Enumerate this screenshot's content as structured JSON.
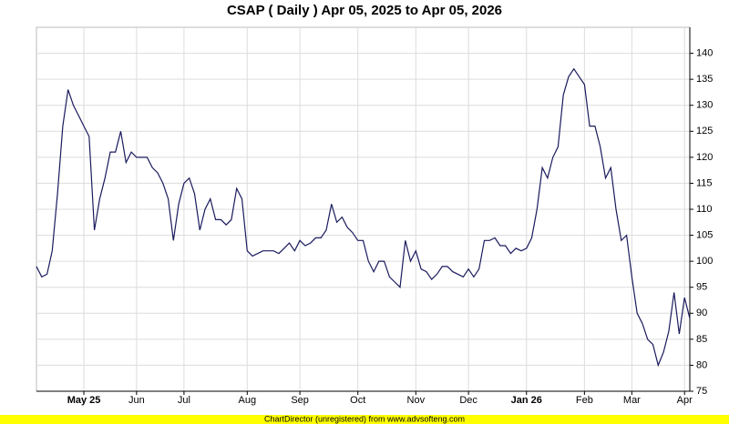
{
  "chart_data": {
    "type": "line",
    "title": "CSAP ( Daily ) Apr 05, 2025 to Apr 05, 2026",
    "categories": [
      null,
      null,
      null,
      null,
      null,
      null,
      null,
      null,
      null,
      "May 25",
      null,
      null,
      null,
      null,
      null,
      null,
      null,
      null,
      null,
      "Jun",
      null,
      null,
      null,
      null,
      null,
      null,
      null,
      null,
      "Jul",
      null,
      null,
      null,
      null,
      null,
      null,
      null,
      null,
      null,
      null,
      null,
      "Aug",
      null,
      null,
      null,
      null,
      null,
      null,
      null,
      null,
      null,
      "Sep",
      null,
      null,
      null,
      null,
      null,
      null,
      null,
      null,
      null,
      null,
      "Oct",
      null,
      null,
      null,
      null,
      null,
      null,
      null,
      null,
      null,
      null,
      "Nov",
      null,
      null,
      null,
      null,
      null,
      null,
      null,
      null,
      null,
      "Dec",
      null,
      null,
      null,
      null,
      null,
      null,
      null,
      null,
      null,
      null,
      "Jan 26",
      null,
      null,
      null,
      null,
      null,
      null,
      null,
      null,
      null,
      null,
      "Feb",
      null,
      null,
      null,
      null,
      null,
      null,
      null,
      null,
      "Mar",
      null,
      null,
      null,
      null,
      null,
      null,
      null,
      null,
      null,
      "Apr",
      null
    ],
    "values": [
      99,
      97,
      97.5,
      102,
      113,
      126,
      133,
      130,
      128,
      126,
      124,
      106,
      112,
      116,
      121,
      121,
      125,
      119,
      121,
      120,
      120,
      120,
      118,
      117,
      115,
      112,
      104,
      111,
      115,
      116,
      113,
      106,
      110,
      112,
      108,
      108,
      107,
      108,
      114,
      112,
      102,
      101,
      101.5,
      102,
      102,
      102,
      101.5,
      102.5,
      103.5,
      102,
      104,
      103,
      103.5,
      104.5,
      104.5,
      106,
      111,
      107.5,
      108.5,
      106.5,
      105.5,
      104,
      104,
      100,
      98,
      100,
      100,
      97,
      96,
      95,
      104,
      100,
      102,
      98.5,
      98,
      96.5,
      97.5,
      99,
      99,
      98,
      97.5,
      97,
      98.5,
      97,
      98.5,
      104,
      104,
      104.5,
      103,
      103,
      101.5,
      102.5,
      102,
      102.5,
      104.5,
      110,
      118,
      116,
      120,
      122,
      132,
      135.5,
      137,
      135.5,
      134,
      126,
      126,
      122,
      116,
      118,
      110,
      104,
      105,
      97,
      90,
      88,
      85,
      84,
      80,
      82.5,
      86.5,
      94,
      86,
      93,
      89
    ],
    "color": "#1a1a5e",
    "ylim": [
      75,
      145
    ],
    "yticks": [
      75,
      80,
      85,
      90,
      95,
      100,
      105,
      110,
      115,
      120,
      125,
      130,
      135,
      140
    ],
    "grid": true
  },
  "footer": "ChartDirector (unregistered) from www.advsofteng.com"
}
